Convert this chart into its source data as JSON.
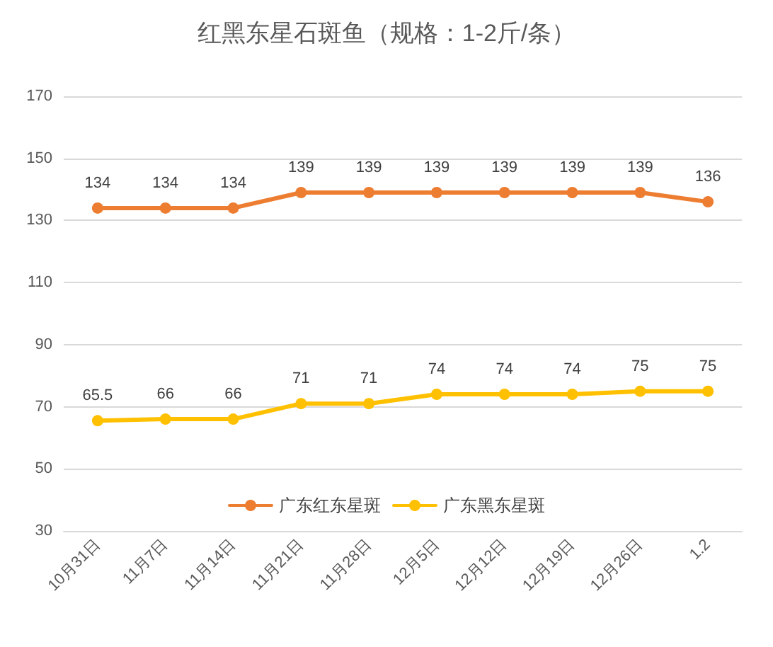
{
  "chart_data": {
    "type": "line",
    "title": "红黑东星石斑鱼（规格：1-2斤/条）",
    "categories": [
      "10月31日",
      "11月7日",
      "11月14日",
      "11月21日",
      "11月28日",
      "12月5日",
      "12月12日",
      "12月19日",
      "12月26日",
      "1.2"
    ],
    "series": [
      {
        "name": "广东红东星斑",
        "color": "#ed7d31",
        "values": [
          134,
          134,
          134,
          139,
          139,
          139,
          139,
          139,
          139,
          136
        ]
      },
      {
        "name": "广东黑东星斑",
        "color": "#ffc000",
        "values": [
          65.5,
          66,
          66,
          71,
          71,
          74,
          74,
          74,
          75,
          75
        ]
      }
    ],
    "ylim": [
      30,
      170
    ],
    "yticks": [
      30,
      50,
      70,
      90,
      110,
      130,
      150,
      170
    ],
    "grid": "y",
    "legend": "bottom",
    "marker": "circle",
    "line_style": "solid",
    "data_labels": true
  }
}
